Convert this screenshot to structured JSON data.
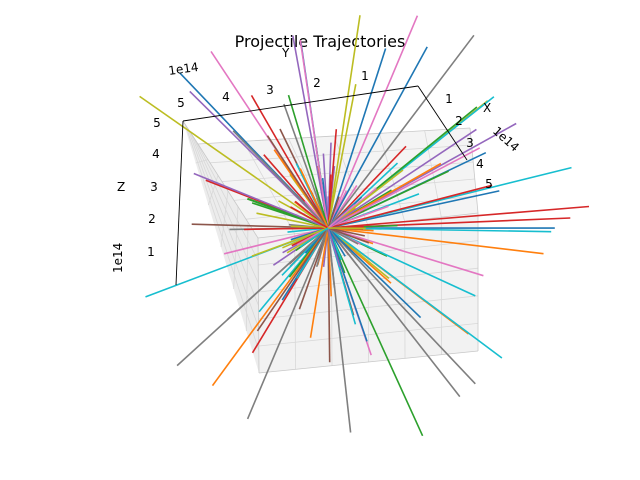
{
  "chart_data": {
    "type": "line",
    "projection": "3d",
    "title": "Projectile Trajectories",
    "xlabel": "X",
    "ylabel": "Y",
    "zlabel": "Z",
    "x_offset_label": "1e14",
    "y_offset_label": "1e14",
    "z_offset_label": "1e14",
    "x_ticks": [
      "1",
      "2",
      "3",
      "4",
      "5"
    ],
    "y_ticks": [
      "1",
      "2",
      "3",
      "4",
      "5"
    ],
    "z_ticks": [
      "1",
      "2",
      "3",
      "4",
      "5"
    ],
    "grid": true,
    "series_count": 160,
    "colors": [
      "#1f77b4",
      "#ff7f0e",
      "#2ca02c",
      "#d62728",
      "#9467bd",
      "#8c564b",
      "#e377c2",
      "#7f7f7f",
      "#bcbd22",
      "#17becf"
    ]
  }
}
